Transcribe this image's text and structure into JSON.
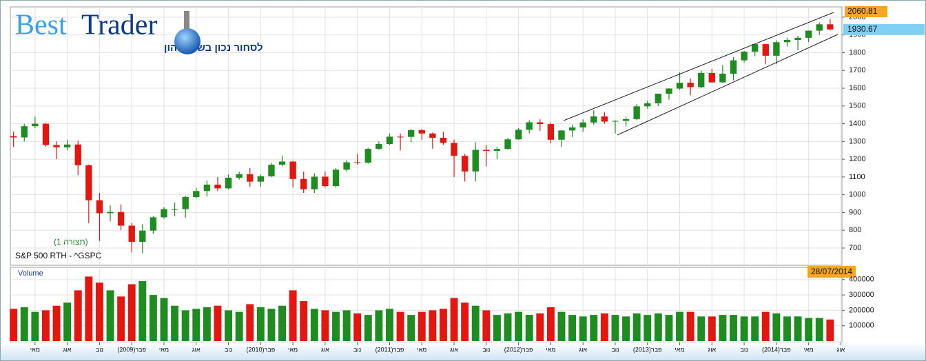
{
  "header": {
    "best": "Best",
    "trader": "Trader",
    "tagline": "לסחור נכון בשוק ההון"
  },
  "chart_data": [
    {
      "type": "candlestick",
      "title": "S&P 500 RTH - ^GSPC",
      "subtitle": "(תצורה 1)",
      "up_color": "#1e8c1e",
      "down_color": "#e3170f",
      "x": [
        2,
        3,
        4,
        5,
        6,
        7,
        8,
        9,
        10,
        11,
        12,
        13,
        14,
        15,
        16,
        17,
        18,
        19,
        20,
        21,
        22,
        23,
        24,
        25,
        26,
        27,
        28,
        29,
        30,
        31,
        32,
        33,
        34,
        35,
        36,
        37,
        38,
        39,
        40,
        41,
        42,
        43,
        44,
        45,
        46,
        47,
        48,
        49,
        50,
        51,
        52,
        53,
        54,
        55,
        56,
        57,
        58,
        59,
        60,
        61,
        62,
        63,
        64,
        65,
        66,
        67,
        68,
        69,
        70,
        71,
        72,
        73,
        74,
        75,
        76,
        77,
        78
      ],
      "open": [
        1330,
        1323,
        1386,
        1400,
        1280,
        1267,
        1283,
        1166,
        969,
        896,
        903,
        826,
        735,
        798,
        873,
        919,
        919,
        987,
        1021,
        1057,
        1036,
        1096,
        1115,
        1074,
        1104,
        1169,
        1187,
        1089,
        1031,
        1102,
        1049,
        1141,
        1183,
        1181,
        1258,
        1286,
        1327,
        1326,
        1364,
        1345,
        1321,
        1292,
        1219,
        1131,
        1253,
        1247,
        1258,
        1312,
        1366,
        1408,
        1398,
        1310,
        1362,
        1379,
        1407,
        1441,
        1412,
        1416,
        1426,
        1498,
        1515,
        1569,
        1598,
        1631,
        1606,
        1686,
        1633,
        1682,
        1757,
        1806,
        1848,
        1783,
        1859,
        1872,
        1884,
        1924,
        1960
      ],
      "high": [
        1355,
        1400,
        1440,
        1405,
        1300,
        1310,
        1305,
        1170,
        1010,
        940,
        945,
        840,
        835,
        880,
        930,
        955,
        995,
        1040,
        1080,
        1100,
        1115,
        1130,
        1150,
        1115,
        1180,
        1220,
        1190,
        1130,
        1120,
        1130,
        1150,
        1195,
        1230,
        1265,
        1300,
        1345,
        1345,
        1370,
        1370,
        1350,
        1355,
        1310,
        1230,
        1295,
        1280,
        1270,
        1320,
        1375,
        1420,
        1425,
        1405,
        1365,
        1395,
        1425,
        1475,
        1465,
        1420,
        1440,
        1510,
        1530,
        1570,
        1600,
        1690,
        1655,
        1700,
        1710,
        1730,
        1775,
        1810,
        1850,
        1850,
        1870,
        1885,
        1895,
        1925,
        1970,
        1990
      ],
      "low": [
        1270,
        1300,
        1375,
        1270,
        1200,
        1250,
        1110,
        840,
        740,
        850,
        800,
        675,
        670,
        780,
        865,
        880,
        870,
        980,
        990,
        1020,
        1030,
        1085,
        1045,
        1045,
        1100,
        1160,
        1040,
        1010,
        1010,
        1040,
        1040,
        1130,
        1170,
        1175,
        1255,
        1280,
        1250,
        1295,
        1310,
        1260,
        1280,
        1100,
        1075,
        1075,
        1160,
        1200,
        1255,
        1310,
        1345,
        1360,
        1290,
        1270,
        1325,
        1355,
        1395,
        1400,
        1345,
        1385,
        1420,
        1485,
        1500,
        1535,
        1590,
        1560,
        1600,
        1630,
        1630,
        1645,
        1745,
        1780,
        1735,
        1735,
        1835,
        1815,
        1860,
        1900,
        1925
      ],
      "close": [
        1323,
        1386,
        1400,
        1280,
        1267,
        1283,
        1166,
        969,
        896,
        903,
        826,
        735,
        798,
        873,
        919,
        919,
        987,
        1021,
        1057,
        1036,
        1096,
        1115,
        1074,
        1104,
        1169,
        1187,
        1089,
        1031,
        1102,
        1049,
        1141,
        1183,
        1181,
        1258,
        1286,
        1327,
        1326,
        1364,
        1345,
        1321,
        1292,
        1219,
        1131,
        1253,
        1247,
        1258,
        1312,
        1366,
        1408,
        1398,
        1310,
        1362,
        1379,
        1407,
        1441,
        1412,
        1416,
        1426,
        1498,
        1515,
        1569,
        1598,
        1631,
        1606,
        1686,
        1633,
        1682,
        1757,
        1806,
        1848,
        1783,
        1859,
        1872,
        1884,
        1924,
        1960,
        1931
      ],
      "xlim": [
        1.7,
        79.1
      ],
      "ylim": [
        603,
        2058
      ],
      "yticks": [
        700,
        800,
        900,
        1000,
        1100,
        1200,
        1300,
        1400,
        1500,
        1600,
        1700,
        1800,
        1900,
        2000
      ],
      "grid": true,
      "last_value": 1930.67,
      "ymax_label": 2060.81
    },
    {
      "type": "bar",
      "title": "Volume",
      "date_label": "28/07/2014",
      "values": [
        210000,
        220000,
        190000,
        200000,
        230000,
        250000,
        330000,
        420000,
        380000,
        330000,
        290000,
        370000,
        390000,
        300000,
        280000,
        230000,
        200000,
        210000,
        220000,
        230000,
        200000,
        190000,
        240000,
        220000,
        210000,
        230000,
        330000,
        260000,
        210000,
        200000,
        190000,
        200000,
        180000,
        170000,
        200000,
        210000,
        190000,
        170000,
        190000,
        200000,
        210000,
        280000,
        250000,
        230000,
        200000,
        170000,
        180000,
        190000,
        170000,
        180000,
        220000,
        190000,
        170000,
        160000,
        170000,
        180000,
        170000,
        160000,
        180000,
        170000,
        180000,
        170000,
        190000,
        190000,
        160000,
        160000,
        170000,
        170000,
        160000,
        160000,
        190000,
        180000,
        160000,
        160000,
        150000,
        150000,
        140000
      ],
      "ylim": [
        0,
        480000
      ],
      "yticks": [
        100000,
        200000,
        300000,
        400000
      ],
      "grid": true,
      "xticks": [
        {
          "value": 4,
          "label": "מאי"
        },
        {
          "value": 7,
          "label": "אוג"
        },
        {
          "value": 10,
          "label": "נוב"
        },
        {
          "value": 13,
          "label": "פבר(2009)"
        },
        {
          "value": 16,
          "label": "מאי"
        },
        {
          "value": 19,
          "label": "אוג"
        },
        {
          "value": 22,
          "label": "נוב"
        },
        {
          "value": 25,
          "label": "פבר(2010)"
        },
        {
          "value": 28,
          "label": "מאי"
        },
        {
          "value": 31,
          "label": "אוג"
        },
        {
          "value": 34,
          "label": "נוב"
        },
        {
          "value": 37,
          "label": "פבר(2011)"
        },
        {
          "value": 40,
          "label": "מאי"
        },
        {
          "value": 43,
          "label": "אוג"
        },
        {
          "value": 46,
          "label": "נוב"
        },
        {
          "value": 49,
          "label": "פבר(2012)"
        },
        {
          "value": 52,
          "label": "מאי"
        },
        {
          "value": 55,
          "label": "אוג"
        },
        {
          "value": 58,
          "label": "נוב"
        },
        {
          "value": 61,
          "label": "פבר(2013)"
        },
        {
          "value": 64,
          "label": "מאי"
        },
        {
          "value": 67,
          "label": "אוג"
        },
        {
          "value": 70,
          "label": "נוב"
        },
        {
          "value": 73,
          "label": "פבר(2014)"
        },
        {
          "value": 76,
          "label": "מאי"
        },
        {
          "value": 79,
          "label": "אוג"
        }
      ]
    }
  ]
}
